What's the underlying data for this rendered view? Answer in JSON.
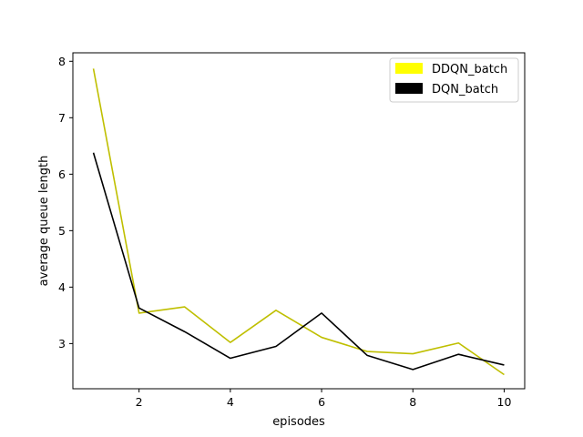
{
  "chart_data": {
    "type": "line",
    "xlabel": "episodes",
    "ylabel": "average queue length",
    "xlim": [
      0.55,
      10.45
    ],
    "ylim": [
      2.2,
      8.15
    ],
    "xticks": [
      2,
      4,
      6,
      8,
      10
    ],
    "yticks": [
      3,
      4,
      5,
      6,
      7,
      8
    ],
    "grid": false,
    "legend_position": "top-right",
    "x": [
      1,
      2,
      3,
      4,
      5,
      6,
      7,
      8,
      9,
      10
    ],
    "series": [
      {
        "name": "DDQN_batch",
        "color": "#bfbf00",
        "legend_color": "#ffff00",
        "values": [
          7.87,
          3.54,
          3.65,
          3.02,
          3.59,
          3.11,
          2.86,
          2.82,
          3.01,
          2.45
        ]
      },
      {
        "name": "DQN_batch",
        "color": "#000000",
        "legend_color": "#000000",
        "values": [
          6.38,
          3.63,
          3.21,
          2.74,
          2.95,
          3.54,
          2.79,
          2.54,
          2.81,
          2.62
        ]
      }
    ]
  }
}
